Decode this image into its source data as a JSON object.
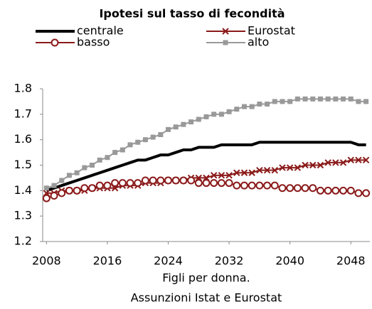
{
  "chart_data": {
    "type": "line",
    "title": "Ipotesi sul tasso di fecondità",
    "xlabel": "Figli per donna.",
    "note": "Assunzioni Istat e Eurostat",
    "x": [
      2008,
      2009,
      2010,
      2011,
      2012,
      2013,
      2014,
      2015,
      2016,
      2017,
      2018,
      2019,
      2020,
      2021,
      2022,
      2023,
      2024,
      2025,
      2026,
      2027,
      2028,
      2029,
      2030,
      2031,
      2032,
      2033,
      2034,
      2035,
      2036,
      2037,
      2038,
      2039,
      2040,
      2041,
      2042,
      2043,
      2044,
      2045,
      2046,
      2047,
      2048,
      2049,
      2050
    ],
    "series": [
      {
        "name": "centrale",
        "color": "#000000",
        "marker": "none",
        "values": [
          1.4,
          1.41,
          1.42,
          1.43,
          1.44,
          1.45,
          1.46,
          1.47,
          1.48,
          1.49,
          1.5,
          1.51,
          1.52,
          1.52,
          1.53,
          1.54,
          1.54,
          1.55,
          1.56,
          1.56,
          1.57,
          1.57,
          1.57,
          1.58,
          1.58,
          1.58,
          1.58,
          1.58,
          1.59,
          1.59,
          1.59,
          1.59,
          1.59,
          1.59,
          1.59,
          1.59,
          1.59,
          1.59,
          1.59,
          1.59,
          1.59,
          1.58,
          1.58
        ]
      },
      {
        "name": "Eurostat",
        "color": "#8b1a1a",
        "marker": "x",
        "values": [
          1.39,
          1.39,
          1.4,
          1.4,
          1.4,
          1.4,
          1.41,
          1.41,
          1.41,
          1.41,
          1.42,
          1.42,
          1.42,
          1.43,
          1.43,
          1.43,
          1.44,
          1.44,
          1.44,
          1.45,
          1.45,
          1.45,
          1.46,
          1.46,
          1.46,
          1.47,
          1.47,
          1.47,
          1.48,
          1.48,
          1.48,
          1.49,
          1.49,
          1.49,
          1.5,
          1.5,
          1.5,
          1.51,
          1.51,
          1.51,
          1.52,
          1.52,
          1.52
        ]
      },
      {
        "name": "basso",
        "color": "#8b1a1a",
        "marker": "circle",
        "values": [
          1.37,
          1.38,
          1.39,
          1.4,
          1.4,
          1.41,
          1.41,
          1.42,
          1.42,
          1.43,
          1.43,
          1.43,
          1.43,
          1.44,
          1.44,
          1.44,
          1.44,
          1.44,
          1.44,
          1.44,
          1.43,
          1.43,
          1.43,
          1.43,
          1.43,
          1.42,
          1.42,
          1.42,
          1.42,
          1.42,
          1.42,
          1.41,
          1.41,
          1.41,
          1.41,
          1.41,
          1.4,
          1.4,
          1.4,
          1.4,
          1.4,
          1.39,
          1.39
        ]
      },
      {
        "name": "alto",
        "color": "#999999",
        "marker": "square",
        "values": [
          1.41,
          1.42,
          1.44,
          1.46,
          1.47,
          1.49,
          1.5,
          1.52,
          1.53,
          1.55,
          1.56,
          1.58,
          1.59,
          1.6,
          1.61,
          1.62,
          1.64,
          1.65,
          1.66,
          1.67,
          1.68,
          1.69,
          1.7,
          1.7,
          1.71,
          1.72,
          1.73,
          1.73,
          1.74,
          1.74,
          1.75,
          1.75,
          1.75,
          1.76,
          1.76,
          1.76,
          1.76,
          1.76,
          1.76,
          1.76,
          1.76,
          1.75,
          1.75
        ]
      }
    ],
    "xlim": [
      2007.5,
      2050.5
    ],
    "xticks": [
      2008,
      2016,
      2024,
      2032,
      2040,
      2048
    ],
    "ylim": [
      1.2,
      1.8
    ],
    "yticks": [
      1.2,
      1.3,
      1.4,
      1.5,
      1.6,
      1.7,
      1.8
    ]
  }
}
